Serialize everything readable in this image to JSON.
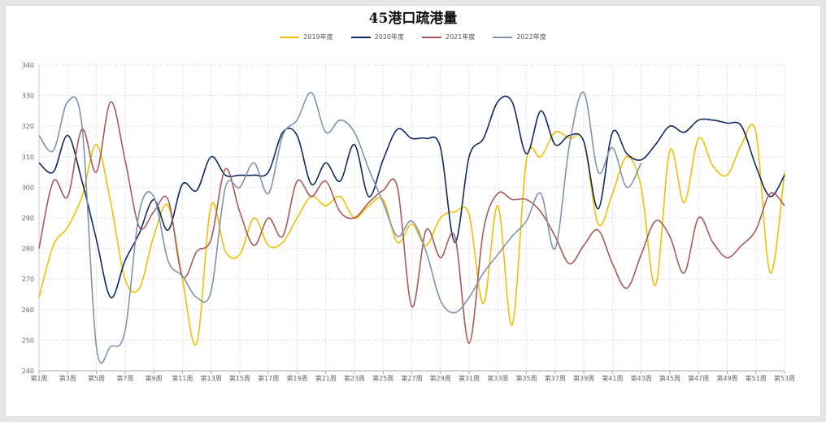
{
  "chart_data": {
    "type": "line",
    "title": "45港口疏港量",
    "xlabel": "",
    "ylabel": "",
    "ylim": [
      240,
      340
    ],
    "yticks": [
      240,
      250,
      260,
      270,
      280,
      290,
      300,
      310,
      320,
      330,
      340
    ],
    "grid": true,
    "legend_position": "top-center",
    "x_tick_labels": [
      "第1周",
      "第3周",
      "第5周",
      "第7周",
      "第9周",
      "第11周",
      "第13周",
      "第15周",
      "第17周",
      "第19周",
      "第21周",
      "第23周",
      "第25周",
      "第27周",
      "第29周",
      "第31周",
      "第33周",
      "第35周",
      "第37周",
      "第39周",
      "第41周",
      "第43周",
      "第45周",
      "第47周",
      "第49周",
      "第51周",
      "第53周"
    ],
    "series": [
      {
        "name": "2019年度",
        "color": "#f2c000",
        "values": [
          264,
          281,
          287,
          297,
          314,
          295,
          270,
          267,
          284,
          294,
          270,
          249,
          294,
          279,
          278,
          290,
          281,
          282,
          290,
          297,
          294,
          297,
          290,
          294,
          296,
          282,
          288,
          281,
          290,
          292,
          291,
          262,
          294,
          255,
          309,
          310,
          318,
          316,
          315,
          288,
          298,
          310,
          300,
          268,
          312,
          295,
          316,
          307,
          304,
          314,
          318,
          272,
          305
        ]
      },
      {
        "name": "2020年度",
        "color": "#0f2a5e",
        "values": [
          308,
          305,
          317,
          302,
          283,
          264,
          276,
          285,
          296,
          286,
          301,
          299,
          310,
          304,
          304,
          304,
          305,
          318,
          317,
          301,
          308,
          302,
          314,
          297,
          309,
          319,
          316,
          316,
          313,
          282,
          310,
          316,
          328,
          328,
          311,
          325,
          314,
          317,
          315,
          293,
          318,
          311,
          309,
          314,
          320,
          318,
          322,
          322,
          321,
          320,
          307,
          297,
          304
        ]
      },
      {
        "name": "2021年度",
        "color": "#a85a5a",
        "values": [
          280,
          302,
          297,
          319,
          305,
          328,
          309,
          287,
          292,
          296,
          271,
          279,
          283,
          306,
          292,
          281,
          290,
          284,
          302,
          297,
          302,
          292,
          290,
          295,
          299,
          300,
          261,
          286,
          277,
          284,
          249,
          286,
          298,
          296,
          296,
          292,
          284,
          275,
          281,
          286,
          275,
          267,
          278,
          289,
          284,
          272,
          290,
          282,
          277,
          281,
          286,
          298,
          294
        ]
      },
      {
        "name": "2022年度",
        "color": "#7f93b0",
        "values": [
          317,
          312,
          328,
          320,
          248,
          248,
          253,
          292,
          297,
          276,
          271,
          264,
          266,
          300,
          300,
          308,
          298,
          317,
          322,
          331,
          318,
          322,
          318,
          306,
          295,
          284,
          289,
          279,
          263,
          259,
          264,
          272,
          278,
          284,
          289,
          298,
          280,
          314,
          331,
          305,
          313,
          300,
          308
        ]
      }
    ]
  }
}
